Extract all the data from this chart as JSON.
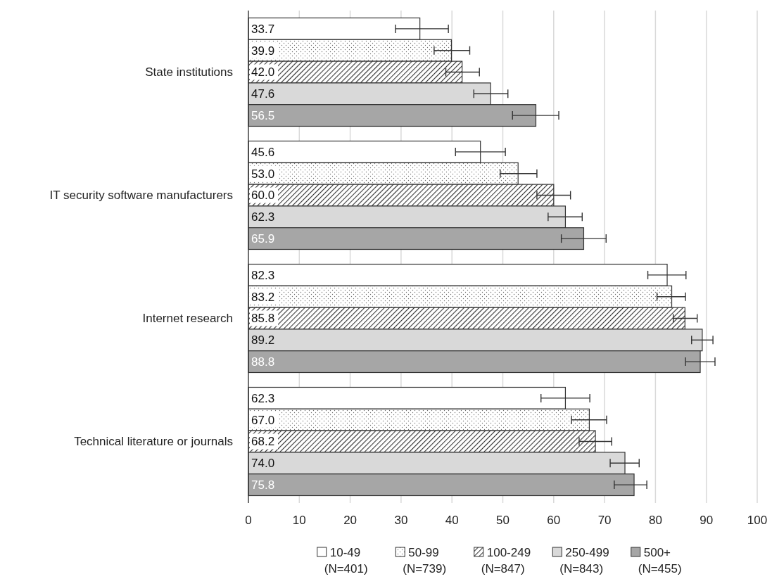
{
  "chart_data": {
    "type": "bar",
    "orientation": "horizontal",
    "categories": [
      "State institutions",
      "IT security software manufacturers",
      "Internet research",
      "Technical literature or journals"
    ],
    "series": [
      {
        "name": "10-49 (N=401)",
        "color": "#ffffff",
        "values": [
          33.7,
          45.6,
          82.3,
          62.3
        ],
        "value_labels": [
          "33.7",
          "45.6",
          "82.3",
          "62.3"
        ],
        "errors": [
          [
            28.9,
            39.3
          ],
          [
            40.7,
            50.5
          ],
          [
            78.5,
            86.0
          ],
          [
            57.5,
            67.1
          ]
        ]
      },
      {
        "name": "50-99 (N=739)",
        "color": "#333333",
        "values": [
          39.9,
          53.0,
          83.2,
          67.0
        ],
        "value_labels": [
          "39.9",
          "53.0",
          "83.2",
          "67.0"
        ],
        "errors": [
          [
            36.5,
            43.5
          ],
          [
            49.5,
            56.7
          ],
          [
            80.3,
            85.9
          ],
          [
            63.5,
            70.4
          ]
        ]
      },
      {
        "name": "100-249 (N=847)",
        "color": "#333333",
        "values": [
          42.0,
          60.0,
          85.8,
          68.2
        ],
        "value_labels": [
          "42.0",
          "60.0",
          "85.8",
          "68.2"
        ],
        "errors": [
          [
            38.8,
            45.4
          ],
          [
            56.7,
            63.3
          ],
          [
            83.5,
            88.2
          ],
          [
            65.0,
            71.4
          ]
        ]
      },
      {
        "name": "250-499 (N=843)",
        "color": "#d9d9d9",
        "values": [
          47.6,
          62.3,
          89.2,
          74.0
        ],
        "value_labels": [
          "47.6",
          "62.3",
          "89.2",
          "74.0"
        ],
        "errors": [
          [
            44.3,
            51.0
          ],
          [
            58.9,
            65.6
          ],
          [
            87.1,
            91.3
          ],
          [
            71.1,
            76.8
          ]
        ]
      },
      {
        "name": "500+ (N=455)",
        "color": "#a6a6a6",
        "values": [
          56.5,
          65.9,
          88.8,
          75.8
        ],
        "value_labels": [
          "56.5",
          "65.9",
          "88.8",
          "75.8"
        ],
        "errors": [
          [
            51.9,
            61.0
          ],
          [
            61.5,
            70.3
          ],
          [
            85.9,
            91.7
          ],
          [
            71.9,
            78.3
          ]
        ]
      }
    ],
    "xlim": [
      0,
      100
    ],
    "xticks": [
      0,
      10,
      20,
      30,
      40,
      50,
      60,
      70,
      80,
      90,
      100
    ],
    "grid": "x",
    "legend": "bottom"
  }
}
